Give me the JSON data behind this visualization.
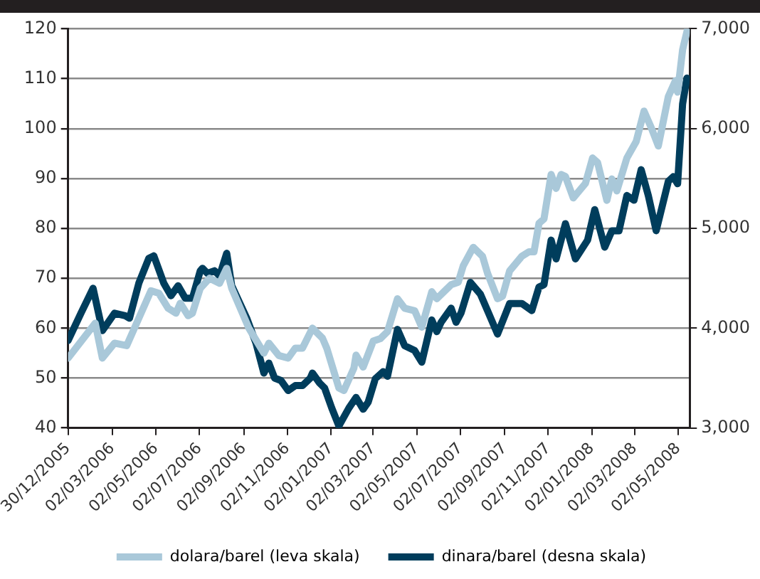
{
  "chart_data": {
    "type": "line",
    "x": [
      "2005-12-30",
      "2006-01-17",
      "2006-02-03",
      "2006-02-06",
      "2006-02-16",
      "2006-03-05",
      "2006-03-20",
      "2006-03-22",
      "2006-03-26",
      "2006-04-08",
      "2006-04-22",
      "2006-04-25",
      "2006-04-29",
      "2006-05-06",
      "2006-05-13",
      "2006-05-19",
      "2006-05-23",
      "2006-05-30",
      "2006-06-02",
      "2006-06-05",
      "2006-06-12",
      "2006-06-16",
      "2006-06-22",
      "2006-07-03",
      "2006-07-06",
      "2006-07-13",
      "2006-07-16",
      "2006-07-23",
      "2006-07-30",
      "2006-08-09",
      "2006-08-16",
      "2006-09-06",
      "2006-09-09",
      "2006-09-19",
      "2006-09-30",
      "2006-10-07",
      "2006-10-15",
      "2006-10-21",
      "2006-10-24",
      "2006-11-03",
      "2006-11-13",
      "2006-11-23",
      "2006-12-04",
      "2006-12-07",
      "2006-12-17",
      "2006-12-21",
      "2006-12-24",
      "2006-12-27",
      "2007-01-03",
      "2007-01-13",
      "2007-01-20",
      "2007-01-27",
      "2007-02-03",
      "2007-02-06",
      "2007-02-16",
      "2007-02-23",
      "2007-03-02",
      "2007-03-05",
      "2007-03-12",
      "2007-03-16",
      "2007-03-22",
      "2007-04-05",
      "2007-04-15",
      "2007-04-29",
      "2007-05-09",
      "2007-05-23",
      "2007-05-30",
      "2007-06-05",
      "2007-06-09",
      "2007-06-19",
      "2007-06-26",
      "2007-06-29",
      "2007-07-03",
      "2007-07-06",
      "2007-07-16",
      "2007-07-20",
      "2007-07-30",
      "2007-08-02",
      "2007-08-09",
      "2007-08-23",
      "2007-08-30",
      "2007-09-09",
      "2007-09-26",
      "2007-10-06",
      "2007-10-10",
      "2007-10-13",
      "2007-10-20",
      "2007-10-27",
      "2007-11-06",
      "2007-11-13",
      "2007-11-20",
      "2007-11-26",
      "2007-12-07",
      "2007-12-10",
      "2007-12-24",
      "2007-12-27",
      "2008-01-03",
      "2008-01-06",
      "2008-01-10",
      "2008-01-20",
      "2008-01-23",
      "2008-01-30",
      "2008-02-06",
      "2008-02-09",
      "2008-02-20",
      "2008-03-01",
      "2008-03-04",
      "2008-03-11",
      "2008-03-15",
      "2008-03-21",
      "2008-03-25",
      "2008-04-01",
      "2008-04-04",
      "2008-04-18",
      "2008-04-25",
      "2008-04-28",
      "2008-05-01",
      "2008-05-08",
      "2008-05-14",
      "2008-05-15"
    ],
    "series": [
      {
        "name": "dolara/barel (leva skala)",
        "color": "#a9c8d9",
        "values": [
          54,
          null,
          null,
          61,
          54,
          57,
          null,
          56.5,
          null,
          null,
          null,
          67.5,
          null,
          67,
          null,
          64,
          null,
          63,
          null,
          65,
          null,
          62.5,
          63,
          68,
          null,
          null,
          70,
          null,
          69,
          72,
          68,
          null,
          60,
          null,
          55,
          57,
          null,
          54.5,
          null,
          54,
          56,
          56,
          null,
          60,
          null,
          58,
          null,
          56,
          null,
          48,
          47.5,
          null,
          52,
          54.6,
          52.2,
          null,
          57.4,
          null,
          57.9,
          null,
          59.3,
          65.9,
          64,
          63.5,
          60.2,
          67.3,
          65.9,
          null,
          67.3,
          68.7,
          null,
          69.2,
          null,
          72.5,
          null,
          76.2,
          null,
          74.4,
          71,
          65.9,
          66.4,
          71.5,
          74.4,
          75.3,
          null,
          75.3,
          81,
          81.9,
          90.8,
          88,
          90.8,
          90.4,
          86.1,
          null,
          89,
          null,
          94.1,
          null,
          93.2,
          null,
          85.6,
          89.9,
          87.5,
          null,
          94.1,
          null,
          97.4,
          null,
          103.5,
          null,
          100.2,
          null,
          96.5,
          106.4,
          null,
          109.6,
          107.3,
          115.8,
          null,
          120
        ]
      },
      {
        "name": "dinara/barel (desna skala)",
        "color": "#003d5c",
        "axis": "y2",
        "values": [
          3875,
          4150,
          4400,
          null,
          3975,
          4150,
          4125,
          null,
          4100,
          4450,
          4700,
          null,
          4725,
          null,
          4450,
          null,
          4325,
          null,
          4425,
          null,
          4300,
          null,
          4300,
          4575,
          4600,
          4550,
          null,
          4575,
          4525,
          4750,
          4425,
          4100,
          null,
          3850,
          3550,
          3650,
          3500,
          null,
          3475,
          3375,
          3425,
          3425,
          3500,
          3550,
          3450,
          null,
          3400,
          null,
          3200,
          3020,
          null,
          3200,
          null,
          3306,
          3188,
          3259,
          null,
          3494,
          null,
          3565,
          3518,
          3988,
          3824,
          3776,
          3659,
          4082,
          3965,
          4059,
          null,
          4200,
          4059,
          null,
          4153,
          null,
          4459,
          null,
          4341,
          null,
          4176,
          3941,
          null,
          4247,
          4247,
          null,
          4176,
          null,
          4412,
          4435,
          4882,
          4694,
          null,
          5047,
          null,
          4694,
          null,
          4882,
          null,
          5188,
          null,
          4812,
          null,
          4976,
          null,
          4976,
          5329,
          5282,
          null,
          5588,
          null,
          5329,
          null,
          4976,
          null,
          5471,
          5518,
          null,
          5447,
          6247,
          6506,
          null
        ]
      }
    ],
    "xlim": [
      "2005-12-30",
      "2008-05-18"
    ],
    "xticks": [
      {
        "value": "2005-12-30",
        "label": "30/12/2005"
      },
      {
        "value": "2006-03-02",
        "label": "02/03/2006"
      },
      {
        "value": "2006-05-02",
        "label": "02/05/2006"
      },
      {
        "value": "2006-07-02",
        "label": "02/07/2006"
      },
      {
        "value": "2006-09-02",
        "label": "02/09/2006"
      },
      {
        "value": "2006-11-02",
        "label": "02/11/2006"
      },
      {
        "value": "2007-01-02",
        "label": "02/01/2007"
      },
      {
        "value": "2007-03-02",
        "label": "02/03/2007"
      },
      {
        "value": "2007-05-02",
        "label": "02/05/2007"
      },
      {
        "value": "2007-07-02",
        "label": "02/07/2007"
      },
      {
        "value": "2007-09-02",
        "label": "02/09/2007"
      },
      {
        "value": "2007-11-02",
        "label": "02/11/2007"
      },
      {
        "value": "2008-01-02",
        "label": "02/01/2008"
      },
      {
        "value": "2008-03-02",
        "label": "02/03/2008"
      },
      {
        "value": "2008-05-02",
        "label": "02/05/2008"
      }
    ],
    "ylim": [
      40,
      120
    ],
    "yticks": [
      40,
      50,
      60,
      70,
      80,
      90,
      100,
      110,
      120
    ],
    "y2lim": [
      3000,
      7000
    ],
    "y2ticks": [
      {
        "value": 3000,
        "label": "3,000"
      },
      {
        "value": 4000,
        "label": "4,000"
      },
      {
        "value": 5000,
        "label": "5,000"
      },
      {
        "value": 6000,
        "label": "6,000"
      },
      {
        "value": 7000,
        "label": "7,000"
      }
    ],
    "grid": "y",
    "legend": "bottom",
    "marker": "none",
    "line_style": "solid"
  }
}
